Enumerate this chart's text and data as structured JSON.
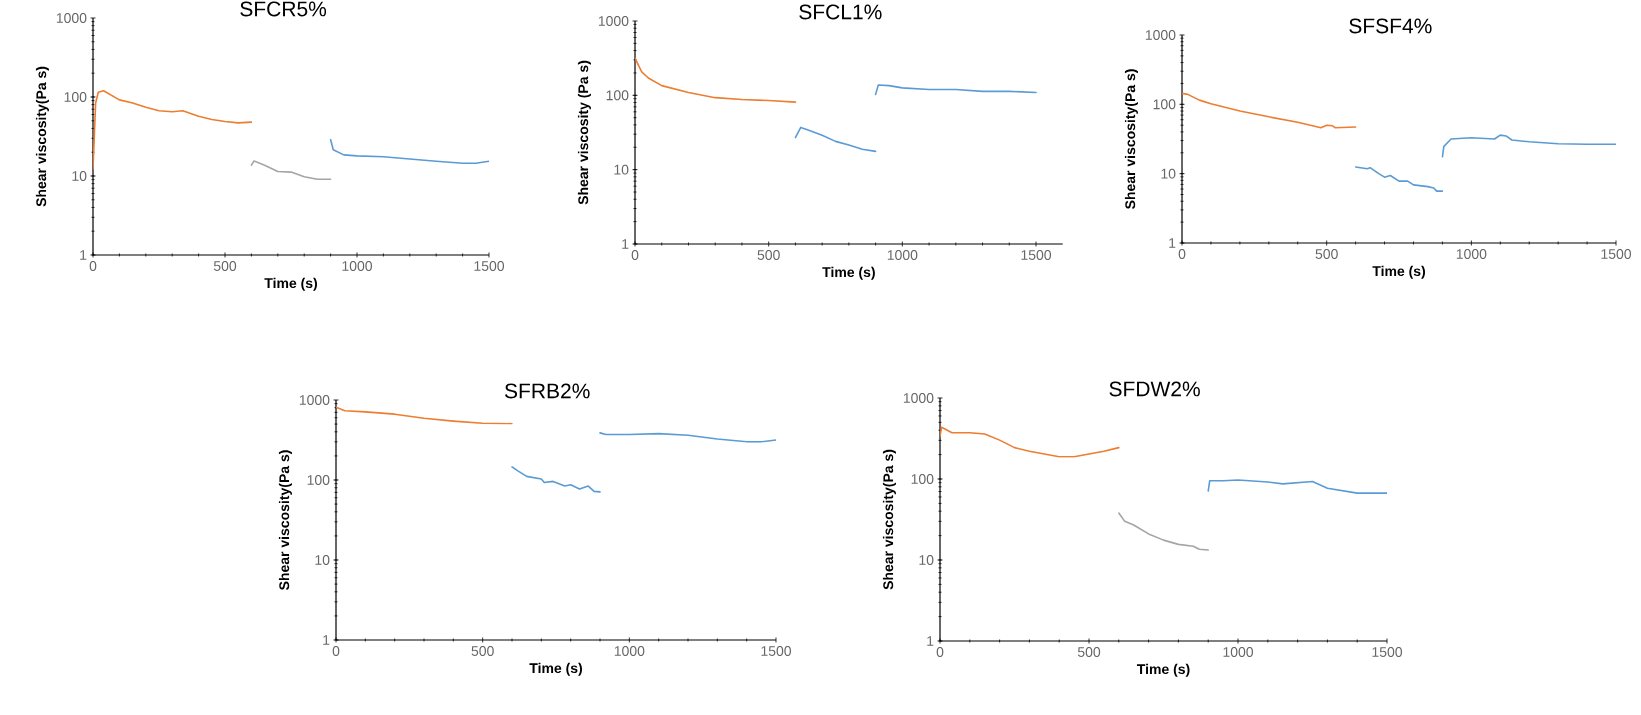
{
  "chart_data": [
    {
      "type": "line",
      "title": "SFCR5%",
      "xlabel": "Time (s)",
      "ylabel": "Shear viscosity(Pa s)",
      "xlim": [
        0,
        1500
      ],
      "ylim": [
        1,
        1000
      ],
      "xticks": [
        0,
        500,
        1000,
        1500
      ],
      "yticks": [
        1,
        10,
        100,
        1000
      ],
      "log": "y",
      "marker": "none",
      "line_style": "solid",
      "series": [
        {
          "color": "#ed7d31",
          "x": [
            0,
            10,
            20,
            40,
            100,
            150,
            200,
            250,
            300,
            340,
            400,
            450,
            500,
            550,
            600
          ],
          "values": [
            12.3,
            84,
            115,
            120,
            92,
            84,
            74,
            67,
            65,
            67,
            57,
            52,
            49,
            47,
            48
          ]
        },
        {
          "color": "#a5a5a5",
          "x": [
            600,
            610,
            650,
            700,
            750,
            800,
            850,
            900
          ],
          "values": [
            13.7,
            15.5,
            13.7,
            11.4,
            11.2,
            9.8,
            9.1,
            9.1
          ]
        },
        {
          "color": "#5b9bd5",
          "x": [
            900,
            910,
            950,
            1000,
            1100,
            1200,
            1300,
            1400,
            1450,
            1500
          ],
          "values": [
            29,
            21.5,
            18.5,
            18,
            17.5,
            16.4,
            15.4,
            14.5,
            14.5,
            15.4
          ]
        }
      ]
    },
    {
      "type": "line",
      "title": "SFCL1%",
      "xlabel": "Time (s)",
      "ylabel": "Shear viscosity (Pa s)",
      "xlim": [
        0,
        1600
      ],
      "ylim": [
        1,
        1000
      ],
      "xticks": [
        0,
        500,
        1000,
        1500
      ],
      "yticks": [
        1,
        10,
        100,
        1000
      ],
      "log": "y",
      "marker": "none",
      "line_style": "solid",
      "series": [
        {
          "color": "#ed7d31",
          "x": [
            0,
            25,
            50,
            100,
            200,
            300,
            400,
            500,
            600
          ],
          "values": [
            316,
            207,
            171,
            135,
            109,
            93,
            88,
            85,
            81
          ]
        },
        {
          "color": "#5b9bd5",
          "x": [
            600,
            620,
            650,
            700,
            750,
            800,
            850,
            900
          ],
          "values": [
            27,
            37,
            34,
            29,
            24,
            21.4,
            18.8,
            17.6
          ]
        },
        {
          "color": "#5b9bd5",
          "x": [
            900,
            910,
            950,
            1000,
            1100,
            1200,
            1300,
            1400,
            1500
          ],
          "values": [
            103,
            138,
            135,
            126,
            120,
            120,
            113,
            113,
            109
          ]
        }
      ]
    },
    {
      "type": "line",
      "title": "SFSF4%",
      "xlabel": "Time (s)",
      "ylabel": "Shear viscosity(Pa s)",
      "xlim": [
        0,
        1500
      ],
      "ylim": [
        1,
        1000
      ],
      "xticks": [
        0,
        500,
        1000,
        1500
      ],
      "yticks": [
        1,
        10,
        100,
        1000
      ],
      "log": "y",
      "marker": "none",
      "line_style": "solid",
      "series": [
        {
          "color": "#ed7d31",
          "x": [
            0,
            20,
            60,
            100,
            200,
            300,
            400,
            480,
            500,
            520,
            530,
            600
          ],
          "values": [
            144,
            139,
            115,
            102,
            80,
            66,
            55,
            46,
            50,
            49,
            46,
            47
          ]
        },
        {
          "color": "#5b9bd5",
          "x": [
            600,
            640,
            650,
            680,
            700,
            720,
            750,
            780,
            800,
            850,
            870,
            880,
            900
          ],
          "values": [
            12.5,
            11.8,
            12.2,
            10,
            8.9,
            9.4,
            7.8,
            7.8,
            6.9,
            6.5,
            6.2,
            5.6,
            5.6
          ]
        },
        {
          "color": "#5b9bd5",
          "x": [
            900,
            905,
            930,
            1000,
            1080,
            1100,
            1120,
            1140,
            1200,
            1300,
            1400,
            1500
          ],
          "values": [
            17.5,
            24.7,
            31.6,
            33,
            31.6,
            36,
            35,
            30.6,
            28.8,
            27,
            26.5,
            26.5
          ]
        }
      ]
    },
    {
      "type": "line",
      "title": "SFRB2%",
      "xlabel": "Time (s)",
      "ylabel": "Shear viscosity(Pa s)",
      "xlim": [
        0,
        1500
      ],
      "ylim": [
        1,
        1000
      ],
      "xticks": [
        0,
        500,
        1000,
        1500
      ],
      "yticks": [
        1,
        10,
        100,
        1000
      ],
      "log": "y",
      "marker": "none",
      "line_style": "solid",
      "series": [
        {
          "color": "#ed7d31",
          "x": [
            0,
            30,
            100,
            200,
            250,
            300,
            400,
            500,
            600
          ],
          "values": [
            814,
            735,
            710,
            665,
            625,
            590,
            545,
            512,
            505
          ]
        },
        {
          "color": "#5b9bd5",
          "x": [
            600,
            620,
            650,
            700,
            710,
            740,
            780,
            800,
            830,
            860,
            880,
            900
          ],
          "values": [
            146,
            130,
            111,
            103,
            93,
            96,
            84,
            87,
            77,
            84,
            72,
            71
          ]
        },
        {
          "color": "#5b9bd5",
          "x": [
            900,
            920,
            1000,
            1100,
            1200,
            1300,
            1400,
            1450,
            1500
          ],
          "values": [
            388,
            370,
            370,
            380,
            362,
            326,
            300,
            300,
            316
          ]
        }
      ]
    },
    {
      "type": "line",
      "title": "SFDW2%",
      "xlabel": "Time (s)",
      "ylabel": "Shear viscosity(Pa s)",
      "xlim": [
        0,
        1500
      ],
      "ylim": [
        1,
        1000
      ],
      "xticks": [
        0,
        500,
        1000,
        1500
      ],
      "yticks": [
        1,
        10,
        100,
        1000
      ],
      "log": "y",
      "marker": "none",
      "line_style": "solid",
      "series": [
        {
          "color": "#ed7d31",
          "x": [
            0,
            5,
            15,
            40,
            100,
            150,
            200,
            250,
            300,
            350,
            400,
            450,
            500,
            550,
            600
          ],
          "values": [
            335,
            435,
            417,
            372,
            372,
            360,
            302,
            244,
            220,
            204,
            188,
            188,
            204,
            220,
            244
          ]
        },
        {
          "color": "#a5a5a5",
          "x": [
            600,
            620,
            650,
            700,
            750,
            800,
            850,
            870,
            900
          ],
          "values": [
            38,
            30,
            27,
            21,
            17.6,
            15.6,
            14.8,
            13.6,
            13.3
          ]
        },
        {
          "color": "#5b9bd5",
          "x": [
            900,
            905,
            950,
            1000,
            1100,
            1150,
            1250,
            1300,
            1400,
            1500
          ],
          "values": [
            71,
            95,
            95,
            97,
            92,
            87,
            93,
            77,
            67,
            67
          ]
        }
      ]
    }
  ]
}
